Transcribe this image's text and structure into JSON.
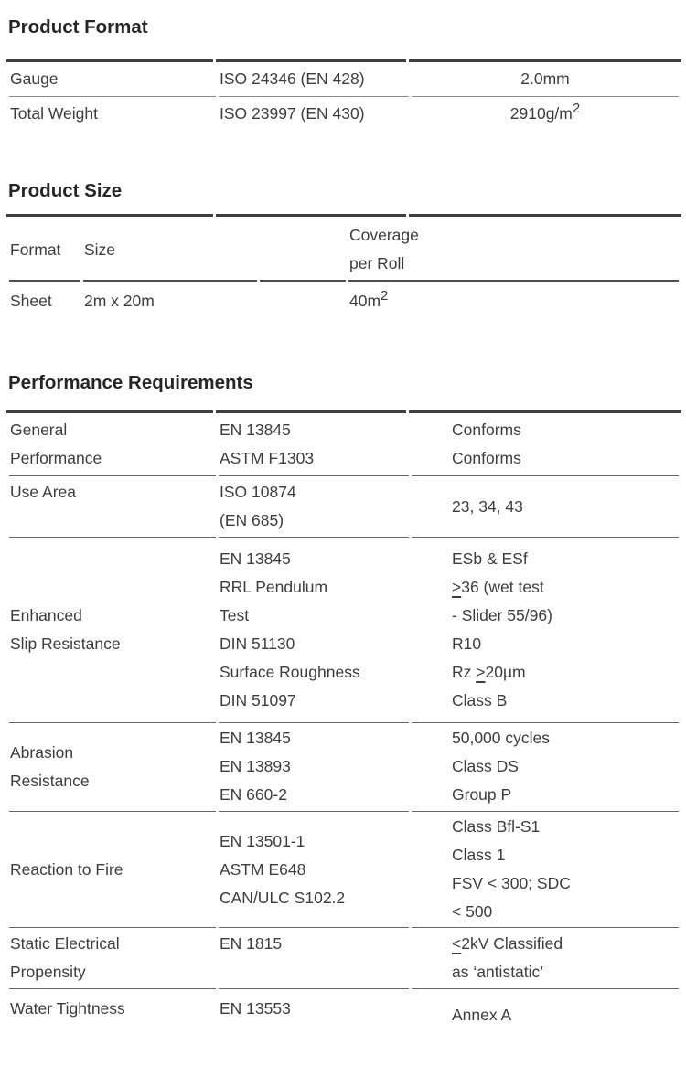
{
  "colors": {
    "text": "#3d3d3d",
    "heading": "#262626",
    "rule_dark": "#3f3f3f",
    "separator_light": "#8a8a8a",
    "separator_mid": "#666666"
  },
  "sections": {
    "product_format": {
      "title": "Product Format",
      "rows": [
        {
          "label": "Gauge",
          "standard": "ISO 24346 (EN 428)",
          "value": "2.0mm"
        },
        {
          "label": "Total Weight",
          "standard": "ISO 23997 (EN 430)",
          "value_base": "2910g/m",
          "value_sup": "2"
        }
      ]
    },
    "product_size": {
      "title": "Product Size",
      "headers": {
        "format": "Format",
        "size": "Size",
        "coverage_line1": "Coverage",
        "coverage_line2": "per Roll"
      },
      "row": {
        "format": "Sheet",
        "size": "2m x 20m",
        "coverage_base": "40m",
        "coverage_sup": "2"
      }
    },
    "performance": {
      "title": "Performance Requirements",
      "rows": [
        {
          "label": [
            "General",
            "Performance"
          ],
          "standards": [
            "EN 13845",
            "ASTM F1303"
          ],
          "results": [
            "Conforms",
            "Conforms"
          ]
        },
        {
          "label": [
            "Use Area"
          ],
          "standards": [
            "ISO 10874",
            "(EN 685)"
          ],
          "results": [
            "23, 34, 43"
          ]
        },
        {
          "label": [
            "Enhanced",
            "Slip Resistance"
          ],
          "standards": [
            "EN 13845",
            "RRL Pendulum",
            "Test",
            "DIN 51130",
            "Surface Roughness",
            "DIN 51097"
          ],
          "results": [
            "ESb & ESf",
            ">36 (wet test",
            "- Slider 55/96)",
            "R10",
            "Rz >20µm",
            "Class B"
          ]
        },
        {
          "label": [
            "Abrasion",
            "Resistance"
          ],
          "standards": [
            "EN 13845",
            "EN 13893",
            "EN 660-2"
          ],
          "results": [
            "50,000 cycles",
            "Class DS",
            "Group P"
          ]
        },
        {
          "label": [
            "Reaction to Fire"
          ],
          "standards": [
            "EN 13501-1",
            "ASTM E648",
            "CAN/ULC S102.2"
          ],
          "results": [
            "Class Bfl-S1",
            "Class 1",
            "FSV < 300; SDC",
            "< 500"
          ]
        },
        {
          "label": [
            "Static Electrical",
            "Propensity"
          ],
          "standards": [
            "EN 1815"
          ],
          "results": [
            "<2kV Classified",
            "as ‘antistatic’"
          ]
        },
        {
          "label": [
            "Water Tightness"
          ],
          "standards": [
            "EN 13553"
          ],
          "results": [
            "Annex A"
          ]
        }
      ]
    }
  }
}
